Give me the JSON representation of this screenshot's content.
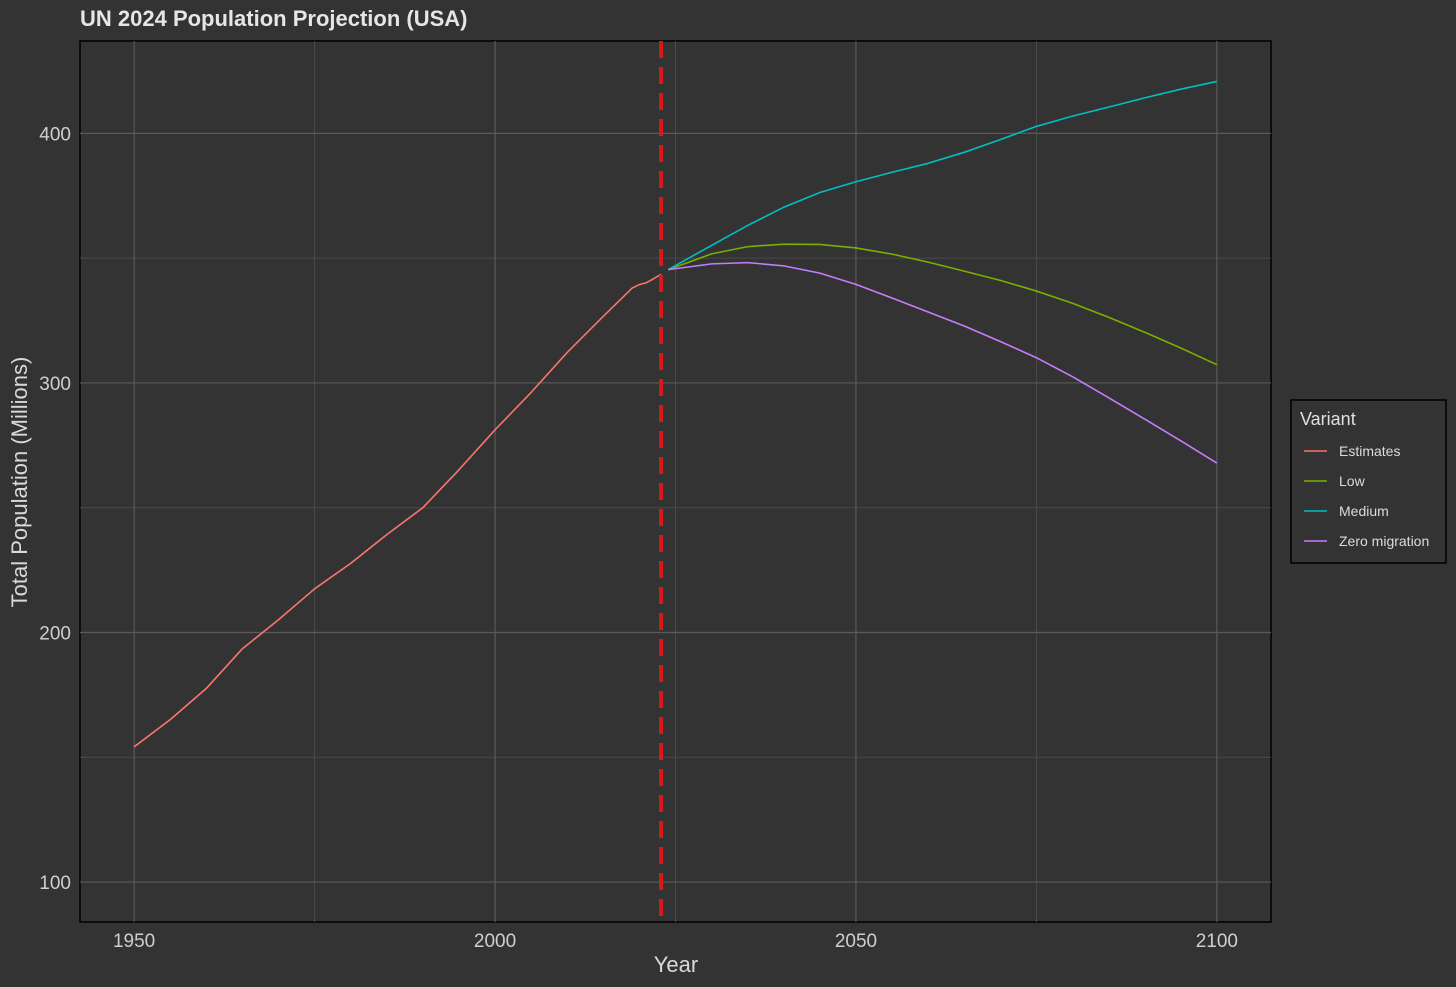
{
  "chart_data": {
    "type": "line",
    "title": "UN 2024 Population Projection (USA)",
    "xlabel": "Year",
    "ylabel": "Total Population (Millions)",
    "xlim": [
      1942.5,
      2107.5
    ],
    "ylim": [
      84,
      437
    ],
    "x_ticks": [
      1950,
      2000,
      2050,
      2100
    ],
    "x_tick_labels": [
      "1950",
      "2000",
      "2050",
      "2100"
    ],
    "x_minor_gridlines": [
      1975,
      2025,
      2075
    ],
    "y_ticks": [
      100,
      200,
      300,
      400
    ],
    "y_tick_labels": [
      "100",
      "200",
      "300",
      "400"
    ],
    "y_minor_gridlines": [
      150,
      250,
      350
    ],
    "grid": true,
    "vline": {
      "x": 2023,
      "color": "#d7191c",
      "style": "dashed"
    },
    "legend": {
      "title": "Variant",
      "position": "right"
    },
    "series": [
      {
        "name": "Estimates",
        "color": "#f8766d",
        "points": [
          [
            1950,
            154.2
          ],
          [
            1955,
            165.1
          ],
          [
            1960,
            177.6
          ],
          [
            1965,
            193.5
          ],
          [
            1970,
            205.1
          ],
          [
            1975,
            217.5
          ],
          [
            1980,
            227.7
          ],
          [
            1985,
            239.2
          ],
          [
            1990,
            250.0
          ],
          [
            1995,
            265.2
          ],
          [
            2000,
            281.2
          ],
          [
            2005,
            296.2
          ],
          [
            2010,
            312.2
          ],
          [
            2015,
            326.7
          ],
          [
            2019,
            338.0
          ],
          [
            2020,
            339.4
          ],
          [
            2021,
            340.2
          ],
          [
            2022,
            341.8
          ],
          [
            2023,
            343.5
          ]
        ]
      },
      {
        "name": "Low",
        "color": "#7cae00",
        "points": [
          [
            2024,
            345.4
          ],
          [
            2030,
            351.7
          ],
          [
            2035,
            354.6
          ],
          [
            2040,
            355.6
          ],
          [
            2045,
            355.5
          ],
          [
            2050,
            354.1
          ],
          [
            2055,
            351.6
          ],
          [
            2060,
            348.4
          ],
          [
            2065,
            344.8
          ],
          [
            2070,
            341.1
          ],
          [
            2075,
            336.8
          ],
          [
            2080,
            331.9
          ],
          [
            2085,
            326.3
          ],
          [
            2090,
            320.3
          ],
          [
            2095,
            314.0
          ],
          [
            2100,
            307.3
          ]
        ]
      },
      {
        "name": "Medium",
        "color": "#00bfc4",
        "points": [
          [
            2024,
            345.4
          ],
          [
            2030,
            355.1
          ],
          [
            2035,
            363.1
          ],
          [
            2040,
            370.4
          ],
          [
            2045,
            376.3
          ],
          [
            2050,
            380.6
          ],
          [
            2055,
            384.4
          ],
          [
            2060,
            388.0
          ],
          [
            2065,
            392.4
          ],
          [
            2070,
            397.5
          ],
          [
            2075,
            402.8
          ],
          [
            2080,
            406.9
          ],
          [
            2085,
            410.5
          ],
          [
            2090,
            414.2
          ],
          [
            2095,
            417.7
          ],
          [
            2100,
            420.8
          ]
        ]
      },
      {
        "name": "Zero migration",
        "color": "#c77cff",
        "points": [
          [
            2024,
            345.4
          ],
          [
            2030,
            347.7
          ],
          [
            2035,
            348.2
          ],
          [
            2040,
            346.9
          ],
          [
            2045,
            344.0
          ],
          [
            2050,
            339.5
          ],
          [
            2055,
            334.0
          ],
          [
            2060,
            328.4
          ],
          [
            2065,
            322.8
          ],
          [
            2070,
            316.6
          ],
          [
            2075,
            310.1
          ],
          [
            2080,
            302.5
          ],
          [
            2085,
            294.1
          ],
          [
            2090,
            285.5
          ],
          [
            2095,
            276.8
          ],
          [
            2100,
            267.9
          ]
        ]
      }
    ]
  }
}
